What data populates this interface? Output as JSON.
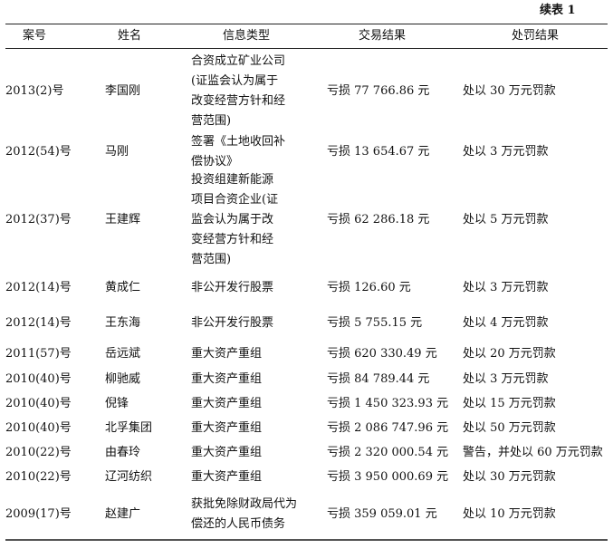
{
  "caption": "续表 1",
  "headers": [
    "案号",
    "姓名",
    "信息类型",
    "交易结果",
    "处罚结果"
  ],
  "rows": [
    {
      "case": "2013(2)号",
      "name": "李国刚",
      "info": [
        "合资成立矿业公司",
        "(证监会认为属于",
        "改变经营方针和经",
        "营范围)"
      ],
      "result": "亏损 77 766.86 元",
      "penalty": "处以 30 万元罚款"
    },
    {
      "case": "2012(54)号",
      "name": "马刚",
      "info": [
        "签署《土地收回补",
        "偿协议》"
      ],
      "result": "亏损 13 654.67 元",
      "penalty": "处以 3 万元罚款"
    },
    {
      "case": "2012(37)号",
      "name": "王建辉",
      "info": [
        "投资组建新能源",
        "项目合资企业(证",
        "监会认为属于改",
        "变经营方针和经",
        "营范围)"
      ],
      "result": "亏损 62 286.18 元",
      "penalty": "处以 5 万元罚款"
    },
    {
      "case": "2012(14)号",
      "name": "黄成仁",
      "info": [
        "非公开发行股票"
      ],
      "result": "亏损 126.60 元",
      "penalty": "处以 3 万元罚款"
    },
    {
      "case": "2012(14)号",
      "name": "王东海",
      "info": [
        "非公开发行股票"
      ],
      "result": "亏损 5 755.15 元",
      "penalty": "处以 4 万元罚款"
    },
    {
      "case": "2011(57)号",
      "name": "岳远斌",
      "info": [
        "重大资产重组"
      ],
      "result": "亏损 620 330.49 元",
      "penalty": "处以 20 万元罚款"
    },
    {
      "case": "2010(40)号",
      "name": "柳驰威",
      "info": [
        "重大资产重组"
      ],
      "result": "亏损 84 789.44 元",
      "penalty": "处以 3 万元罚款"
    },
    {
      "case": "2010(40)号",
      "name": "倪锋",
      "info": [
        "重大资产重组"
      ],
      "result": "亏损 1 450 323.93 元",
      "penalty": "处以 15 万元罚款"
    },
    {
      "case": "2010(40)号",
      "name": "北孚集团",
      "info": [
        "重大资产重组"
      ],
      "result": "亏损 2 086 747.96 元",
      "penalty": "处以 50 万元罚款"
    },
    {
      "case": "2010(22)号",
      "name": "由春玲",
      "info": [
        "重大资产重组"
      ],
      "result": "亏损 2 320 000.54 元",
      "penalty": "警告，并处以 60 万元罚款"
    },
    {
      "case": "2010(22)号",
      "name": "辽河纺织",
      "info": [
        "重大资产重组"
      ],
      "result": "亏损 3 950 000.69 元",
      "penalty": "处以 30 万元罚款"
    },
    {
      "case": "2009(17)号",
      "name": "赵建广",
      "info": [
        "获批免除财政局代为",
        "偿还的人民币债务"
      ],
      "result": "亏损 359 059.01 元",
      "penalty": "处以 10 万元罚款"
    }
  ]
}
